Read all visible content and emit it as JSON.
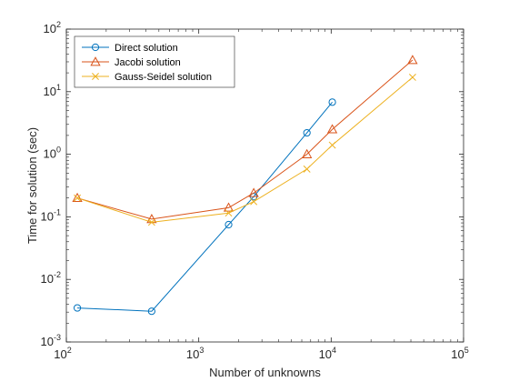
{
  "chart_data": {
    "type": "line",
    "xscale": "log",
    "yscale": "log",
    "xlabel": "Number of unknowns",
    "ylabel": "Time for solution (sec)",
    "xlim": [
      100,
      100000
    ],
    "ylim": [
      0.001,
      100
    ],
    "grid": false,
    "legend_position": "top-left",
    "x_ticks": [
      {
        "value": 100,
        "base": "10",
        "exp": "2"
      },
      {
        "value": 1000,
        "base": "10",
        "exp": "3"
      },
      {
        "value": 10000,
        "base": "10",
        "exp": "4"
      },
      {
        "value": 100000,
        "base": "10",
        "exp": "5"
      }
    ],
    "y_ticks": [
      {
        "value": 0.001,
        "base": "10",
        "exp": "-3"
      },
      {
        "value": 0.01,
        "base": "10",
        "exp": "-2"
      },
      {
        "value": 0.1,
        "base": "10",
        "exp": "-1"
      },
      {
        "value": 1,
        "base": "10",
        "exp": "0"
      },
      {
        "value": 10,
        "base": "10",
        "exp": "1"
      },
      {
        "value": 100,
        "base": "10",
        "exp": "2"
      }
    ],
    "series": [
      {
        "name": "Direct solution",
        "color": "#0072BD",
        "marker": "circle",
        "x": [
          121,
          441,
          1681,
          2601,
          6561,
          10201
        ],
        "y": [
          0.0035,
          0.0031,
          0.075,
          0.21,
          2.2,
          6.8
        ]
      },
      {
        "name": "Jacobi solution",
        "color": "#D95319",
        "marker": "triangle",
        "x": [
          121,
          441,
          1681,
          2601,
          6561,
          10201,
          41209
        ],
        "y": [
          0.2,
          0.092,
          0.14,
          0.24,
          1.0,
          2.5,
          32
        ]
      },
      {
        "name": "Gauss-Seidel solution",
        "color": "#EDB120",
        "marker": "x",
        "x": [
          121,
          441,
          1681,
          2601,
          6561,
          10201,
          41209
        ],
        "y": [
          0.2,
          0.082,
          0.115,
          0.175,
          0.58,
          1.4,
          17
        ]
      }
    ]
  }
}
